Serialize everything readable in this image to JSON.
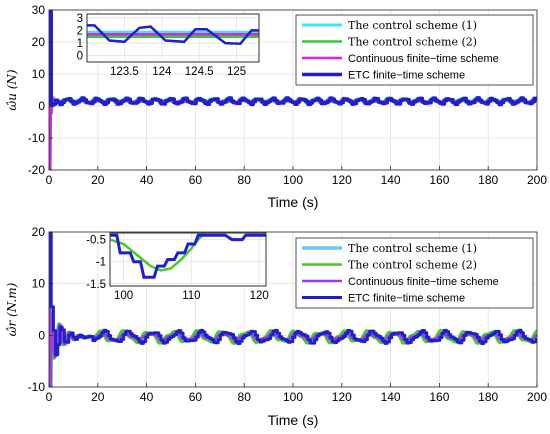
{
  "chart_data": [
    {
      "type": "line",
      "ylabel": "ω̂u (N)",
      "xlabel": "Time (s)",
      "xlim": [
        0,
        200
      ],
      "ylim": [
        -20,
        30
      ],
      "xticks": [
        0,
        20,
        40,
        60,
        80,
        100,
        120,
        140,
        160,
        180,
        200
      ],
      "yticks": [
        -20,
        -10,
        0,
        10,
        20,
        30
      ],
      "x_tick_labels": [
        "0",
        "20",
        "40",
        "60",
        "80",
        "100",
        "120",
        "140",
        "160",
        "180",
        "200"
      ],
      "y_tick_labels": [
        "-20",
        "-10",
        "0",
        "10",
        "20",
        "30"
      ],
      "grid": true,
      "legend_position": "top-right",
      "series": [
        {
          "name": "The control scheme (1)",
          "color": "#3fe6f0",
          "width": 3,
          "kind": "smooth",
          "mean": 1.8,
          "amp": 0.6,
          "period": 6.0,
          "phase": 0.3,
          "transient": "spike"
        },
        {
          "name": "The control scheme (2)",
          "color": "#33cc33",
          "width": 2.5,
          "kind": "smooth",
          "mean": 1.5,
          "amp": 0.5,
          "period": 6.0,
          "phase": 0.8,
          "transient": "spike"
        },
        {
          "name": "Continuous finite−time scheme",
          "color": "#e020e0",
          "width": 2.5,
          "kind": "smooth",
          "mean": 1.6,
          "amp": 0.4,
          "period": 6.0,
          "phase": 0.5,
          "transient": "spike"
        },
        {
          "name": "ETC finite−time scheme",
          "color": "#1f1fd0",
          "width": 3.5,
          "kind": "step",
          "mean": 1.5,
          "amp": 0.8,
          "period": 6.0,
          "phase": 0.0,
          "transient": "spike"
        }
      ],
      "inset": {
        "xlim": [
          123,
          125.3
        ],
        "ylim": [
          -0.5,
          3.3
        ],
        "xticks": [
          123.5,
          124,
          124.5,
          125
        ],
        "yticks": [
          0,
          1,
          2,
          3
        ],
        "x_tick_labels": [
          "123.5",
          "124",
          "124.5",
          "125"
        ],
        "y_tick_labels": [
          "0",
          "1",
          "2",
          "3"
        ],
        "curves": [
          {
            "color": "#3fe6f0",
            "width": 2.5,
            "kind": "flat",
            "points": [
              [
                123,
                1.85
              ],
              [
                125.3,
                1.85
              ]
            ]
          },
          {
            "color": "#33cc33",
            "width": 2.5,
            "kind": "flat",
            "points": [
              [
                123,
                1.5
              ],
              [
                125.3,
                1.5
              ]
            ]
          },
          {
            "color": "#e020e0",
            "width": 2.5,
            "kind": "flat",
            "points": [
              [
                123,
                1.7
              ],
              [
                125.3,
                1.7
              ]
            ]
          },
          {
            "color": "#1f1fd0",
            "width": 2.5,
            "kind": "poly",
            "points": [
              [
                123,
                2.4
              ],
              [
                123.1,
                2.4
              ],
              [
                123.3,
                1.2
              ],
              [
                123.5,
                1.1
              ],
              [
                123.7,
                2.2
              ],
              [
                123.85,
                2.3
              ],
              [
                124.05,
                1.2
              ],
              [
                124.3,
                1.1
              ],
              [
                124.45,
                2.1
              ],
              [
                124.6,
                2.1
              ],
              [
                124.85,
                1.0
              ],
              [
                125.05,
                0.95
              ],
              [
                125.2,
                2.0
              ],
              [
                125.3,
                2.0
              ]
            ]
          }
        ]
      }
    },
    {
      "type": "line",
      "ylabel": "ω̂r (N.m)",
      "xlabel": "Time (s)",
      "xlim": [
        0,
        200
      ],
      "ylim": [
        -10,
        20
      ],
      "xticks": [
        0,
        20,
        40,
        60,
        80,
        100,
        120,
        140,
        160,
        180,
        200
      ],
      "yticks": [
        -10,
        0,
        10,
        20
      ],
      "x_tick_labels": [
        "0",
        "20",
        "40",
        "60",
        "80",
        "100",
        "120",
        "140",
        "160",
        "180",
        "200"
      ],
      "y_tick_labels": [
        "-10",
        "0",
        "10",
        "20"
      ],
      "grid": true,
      "legend_position": "top-right",
      "series": [
        {
          "name": "The control scheme (1)",
          "color": "#6ec8f0",
          "width": 4,
          "kind": "smooth",
          "mean": -0.3,
          "amp": 0.9,
          "period": 10.0,
          "phase": 0.2,
          "transient": "osc"
        },
        {
          "name": "The control scheme (2)",
          "color": "#44cc22",
          "width": 2.5,
          "kind": "smooth",
          "mean": -0.3,
          "amp": 1.0,
          "period": 10.0,
          "phase": 1.2,
          "transient": "osc"
        },
        {
          "name": "Continuous finite−time scheme",
          "color": "#9f3fd8",
          "width": 2.5,
          "kind": "smooth",
          "mean": -0.3,
          "amp": 0.6,
          "period": 10.0,
          "phase": 0.6,
          "transient": "osc"
        },
        {
          "name": "ETC finite−time scheme",
          "color": "#1f1fd0",
          "width": 3,
          "kind": "step",
          "mean": -0.3,
          "amp": 1.0,
          "period": 10.0,
          "phase": 0.0,
          "transient": "osc"
        }
      ],
      "inset": {
        "xlim": [
          98,
          121
        ],
        "ylim": [
          -1.55,
          -0.35
        ],
        "xticks": [
          100,
          110,
          120
        ],
        "yticks": [
          -1.5,
          -1,
          -0.5
        ],
        "x_tick_labels": [
          "100",
          "110",
          "120"
        ],
        "y_tick_labels": [
          "-1.5",
          "-1",
          "-0.5"
        ],
        "curves": [
          {
            "color": "#44cc22",
            "width": 2.5,
            "kind": "poly",
            "points": [
              [
                98,
                -0.5
              ],
              [
                100,
                -0.6
              ],
              [
                102,
                -0.85
              ],
              [
                104,
                -1.1
              ],
              [
                105.5,
                -1.2
              ],
              [
                107,
                -1.15
              ],
              [
                108.5,
                -0.95
              ],
              [
                110,
                -0.7
              ],
              [
                111,
                -0.5
              ],
              [
                112,
                -0.35
              ]
            ]
          },
          {
            "color": "#1f1fd0",
            "width": 3,
            "kind": "poly",
            "points": [
              [
                98,
                -0.4
              ],
              [
                99,
                -0.4
              ],
              [
                99.5,
                -0.8
              ],
              [
                101,
                -0.8
              ],
              [
                101.5,
                -1.0
              ],
              [
                102.5,
                -1.0
              ],
              [
                103,
                -1.35
              ],
              [
                104.5,
                -1.35
              ],
              [
                105,
                -1.1
              ],
              [
                106,
                -1.1
              ],
              [
                106.5,
                -0.95
              ],
              [
                107.5,
                -0.95
              ],
              [
                108,
                -0.8
              ],
              [
                109,
                -0.8
              ],
              [
                109.5,
                -0.6
              ],
              [
                110.5,
                -0.6
              ],
              [
                111,
                -0.4
              ],
              [
                115,
                -0.4
              ],
              [
                116,
                -0.5
              ],
              [
                117.5,
                -0.5
              ],
              [
                118,
                -0.4
              ],
              [
                121,
                -0.4
              ]
            ]
          }
        ]
      }
    }
  ]
}
